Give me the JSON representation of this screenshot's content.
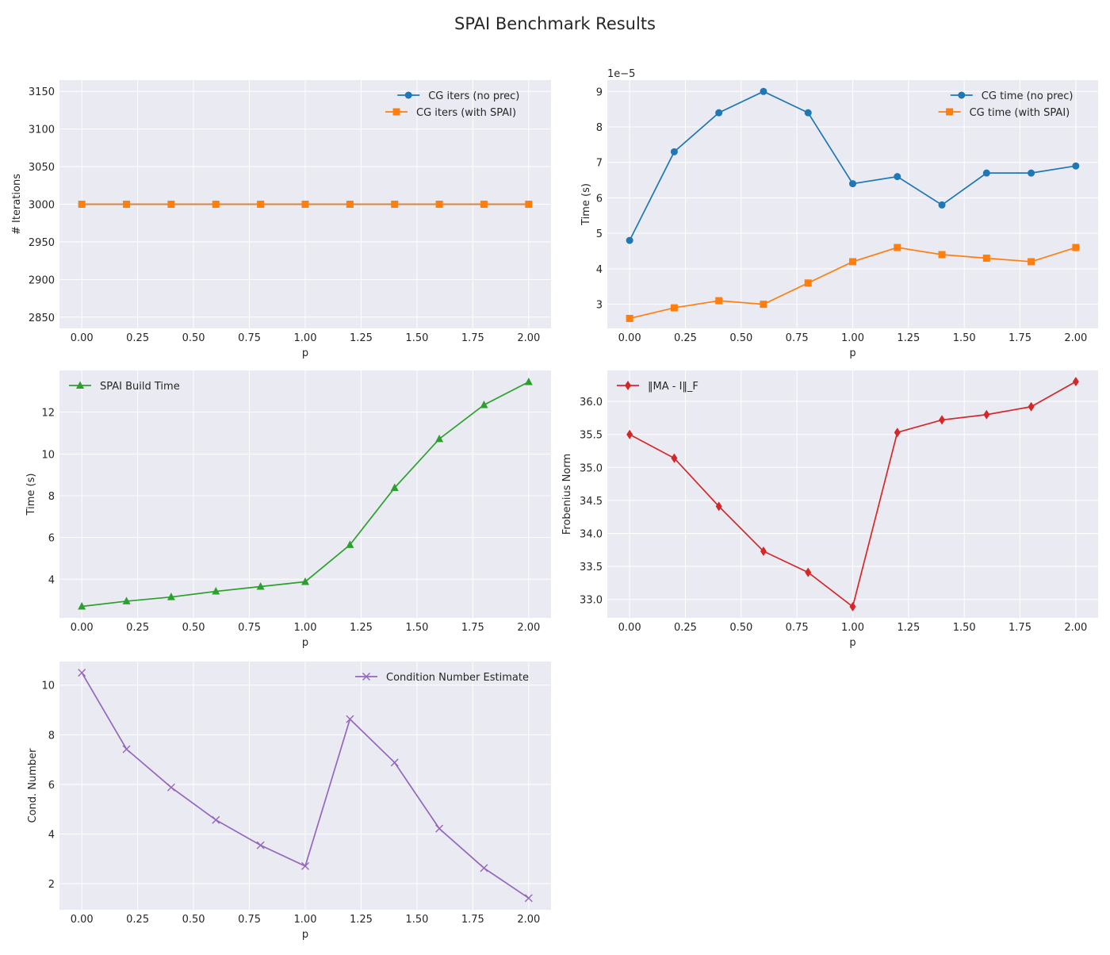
{
  "figure": {
    "title": "SPAI Benchmark Results"
  },
  "chart_data": [
    {
      "type": "line",
      "title": "",
      "xlabel": "p",
      "ylabel": "# Iterations",
      "xlim": [
        -0.1,
        2.1
      ],
      "ylim": [
        2835,
        3165
      ],
      "xticks": [
        0.0,
        0.25,
        0.5,
        0.75,
        1.0,
        1.25,
        1.5,
        1.75,
        2.0
      ],
      "xtick_labels": [
        "0.00",
        "0.25",
        "0.50",
        "0.75",
        "1.00",
        "1.25",
        "1.50",
        "1.75",
        "2.00"
      ],
      "yticks": [
        2850,
        2900,
        2950,
        3000,
        3050,
        3100,
        3150
      ],
      "ytick_labels": [
        "2850",
        "2900",
        "2950",
        "3000",
        "3050",
        "3100",
        "3150"
      ],
      "offset_text": "",
      "grid": true,
      "legend_position": "top-right",
      "x": [
        0.0,
        0.2,
        0.4,
        0.6,
        0.8,
        1.0,
        1.2,
        1.4,
        1.6,
        1.8,
        2.0
      ],
      "series": [
        {
          "name": "CG iters (no prec)",
          "color": "#1f77b4",
          "marker": "circle",
          "values": [
            3000,
            3000,
            3000,
            3000,
            3000,
            3000,
            3000,
            3000,
            3000,
            3000,
            3000
          ]
        },
        {
          "name": "CG iters (with SPAI)",
          "color": "#ff7f0e",
          "marker": "square",
          "values": [
            3000,
            3000,
            3000,
            3000,
            3000,
            3000,
            3000,
            3000,
            3000,
            3000,
            3000
          ]
        }
      ]
    },
    {
      "type": "line",
      "title": "",
      "xlabel": "p",
      "ylabel": "Time (s)",
      "xlim": [
        -0.1,
        2.1
      ],
      "ylim": [
        2.32e-05,
        9.32e-05
      ],
      "xticks": [
        0.0,
        0.25,
        0.5,
        0.75,
        1.0,
        1.25,
        1.5,
        1.75,
        2.0
      ],
      "xtick_labels": [
        "0.00",
        "0.25",
        "0.50",
        "0.75",
        "1.00",
        "1.25",
        "1.50",
        "1.75",
        "2.00"
      ],
      "yticks": [
        3e-05,
        4e-05,
        5e-05,
        6e-05,
        7e-05,
        8e-05,
        9e-05
      ],
      "ytick_labels": [
        "3",
        "4",
        "5",
        "6",
        "7",
        "8",
        "9"
      ],
      "offset_text": "1e−5",
      "grid": true,
      "legend_position": "top-right",
      "x": [
        0.0,
        0.2,
        0.4,
        0.6,
        0.8,
        1.0,
        1.2,
        1.4,
        1.6,
        1.8,
        2.0
      ],
      "series": [
        {
          "name": "CG time (no prec)",
          "color": "#1f77b4",
          "marker": "circle",
          "values": [
            4.8e-05,
            7.3e-05,
            8.4e-05,
            9e-05,
            8.4e-05,
            6.4e-05,
            6.6e-05,
            5.8e-05,
            6.7e-05,
            6.7e-05,
            6.9e-05
          ]
        },
        {
          "name": "CG time (with SPAI)",
          "color": "#ff7f0e",
          "marker": "square",
          "values": [
            2.6e-05,
            2.9e-05,
            3.1e-05,
            3e-05,
            3.6e-05,
            4.2e-05,
            4.6e-05,
            4.4e-05,
            4.3e-05,
            4.2e-05,
            4.6e-05
          ]
        }
      ]
    },
    {
      "type": "line",
      "title": "",
      "xlabel": "p",
      "ylabel": "Time (s)",
      "xlim": [
        -0.1,
        2.1
      ],
      "ylim": [
        2.15,
        14.0
      ],
      "xticks": [
        0.0,
        0.25,
        0.5,
        0.75,
        1.0,
        1.25,
        1.5,
        1.75,
        2.0
      ],
      "xtick_labels": [
        "0.00",
        "0.25",
        "0.50",
        "0.75",
        "1.00",
        "1.25",
        "1.50",
        "1.75",
        "2.00"
      ],
      "yticks": [
        4,
        6,
        8,
        10,
        12
      ],
      "ytick_labels": [
        "4",
        "6",
        "8",
        "10",
        "12"
      ],
      "offset_text": "",
      "grid": true,
      "legend_position": "top-left",
      "x": [
        0.0,
        0.2,
        0.4,
        0.6,
        0.8,
        1.0,
        1.2,
        1.4,
        1.6,
        1.8,
        2.0
      ],
      "series": [
        {
          "name": "SPAI Build Time",
          "color": "#2ca02c",
          "marker": "triangle",
          "values": [
            2.7,
            2.95,
            3.15,
            3.42,
            3.65,
            3.88,
            5.65,
            8.38,
            10.72,
            12.35,
            13.45
          ]
        }
      ]
    },
    {
      "type": "line",
      "title": "",
      "xlabel": "p",
      "ylabel": "Frobenius Norm",
      "xlim": [
        -0.1,
        2.1
      ],
      "ylim": [
        32.72,
        36.47
      ],
      "xticks": [
        0.0,
        0.25,
        0.5,
        0.75,
        1.0,
        1.25,
        1.5,
        1.75,
        2.0
      ],
      "xtick_labels": [
        "0.00",
        "0.25",
        "0.50",
        "0.75",
        "1.00",
        "1.25",
        "1.50",
        "1.75",
        "2.00"
      ],
      "yticks": [
        33.0,
        33.5,
        34.0,
        34.5,
        35.0,
        35.5,
        36.0
      ],
      "ytick_labels": [
        "33.0",
        "33.5",
        "34.0",
        "34.5",
        "35.0",
        "35.5",
        "36.0"
      ],
      "offset_text": "",
      "grid": true,
      "legend_position": "top-left",
      "x": [
        0.0,
        0.2,
        0.4,
        0.6,
        0.8,
        1.0,
        1.2,
        1.4,
        1.6,
        1.8,
        2.0
      ],
      "series": [
        {
          "name": "‖MA - I‖_F",
          "color": "#d62728",
          "marker": "diamond",
          "values": [
            35.5,
            35.14,
            34.41,
            33.73,
            33.41,
            32.89,
            35.53,
            35.72,
            35.8,
            35.92,
            36.3
          ]
        }
      ]
    },
    {
      "type": "line",
      "title": "",
      "xlabel": "p",
      "ylabel": "Cond. Number",
      "xlim": [
        -0.1,
        2.1
      ],
      "ylim": [
        0.95,
        10.95
      ],
      "xticks": [
        0.0,
        0.25,
        0.5,
        0.75,
        1.0,
        1.25,
        1.5,
        1.75,
        2.0
      ],
      "xtick_labels": [
        "0.00",
        "0.25",
        "0.50",
        "0.75",
        "1.00",
        "1.25",
        "1.50",
        "1.75",
        "2.00"
      ],
      "yticks": [
        2,
        4,
        6,
        8,
        10
      ],
      "ytick_labels": [
        "2",
        "4",
        "6",
        "8",
        "10"
      ],
      "offset_text": "",
      "grid": true,
      "legend_position": "top-right",
      "x": [
        0.0,
        0.2,
        0.4,
        0.6,
        0.8,
        1.0,
        1.2,
        1.4,
        1.6,
        1.8,
        2.0
      ],
      "series": [
        {
          "name": "Condition Number Estimate",
          "color": "#9467bd",
          "marker": "x",
          "values": [
            10.5,
            7.42,
            5.88,
            4.57,
            3.55,
            2.71,
            8.63,
            6.88,
            4.22,
            2.63,
            1.42
          ]
        }
      ]
    }
  ],
  "colors": {
    "axes_background": "#eaeaf2",
    "grid": "#ffffff",
    "text": "#262626"
  }
}
